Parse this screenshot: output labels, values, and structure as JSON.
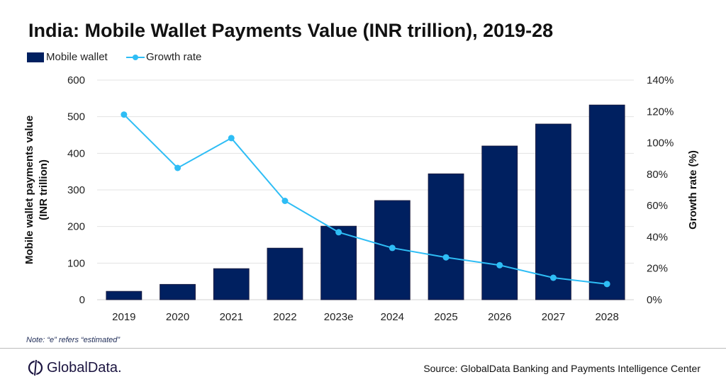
{
  "chart_data": {
    "type": "bar+line",
    "title": "India: Mobile Wallet Payments Value (INR trillion), 2019-28",
    "categories": [
      "2019",
      "2020",
      "2021",
      "2022",
      "2023e",
      "2024",
      "2025",
      "2026",
      "2027",
      "2028"
    ],
    "series": [
      {
        "name": "Mobile wallet",
        "type": "bar",
        "axis": "left",
        "color": "#002060",
        "values": [
          23,
          42,
          85,
          141,
          201,
          271,
          344,
          420,
          480,
          532
        ]
      },
      {
        "name": "Growth rate",
        "type": "line",
        "axis": "right",
        "color": "#2ebdf5",
        "values": [
          118,
          84,
          103,
          63,
          43,
          33,
          27,
          22,
          14,
          10
        ]
      }
    ],
    "ylabel": "Mobile wallet payments value (INR trillion)",
    "ylabel_right": "Growth rate (%)",
    "ylim": [
      0,
      600
    ],
    "yticks": [
      "0",
      "100",
      "200",
      "300",
      "400",
      "500",
      "600"
    ],
    "ylim_right": [
      0,
      140
    ],
    "yticks_right": [
      "0%",
      "20%",
      "40%",
      "60%",
      "80%",
      "100%",
      "120%",
      "140%"
    ],
    "grid": true,
    "legend": "top-left"
  },
  "note": "Note: “e” refers “estimated”",
  "logo": "GlobalData.",
  "source": "Source: GlobalData Banking and Payments Intelligence Center"
}
